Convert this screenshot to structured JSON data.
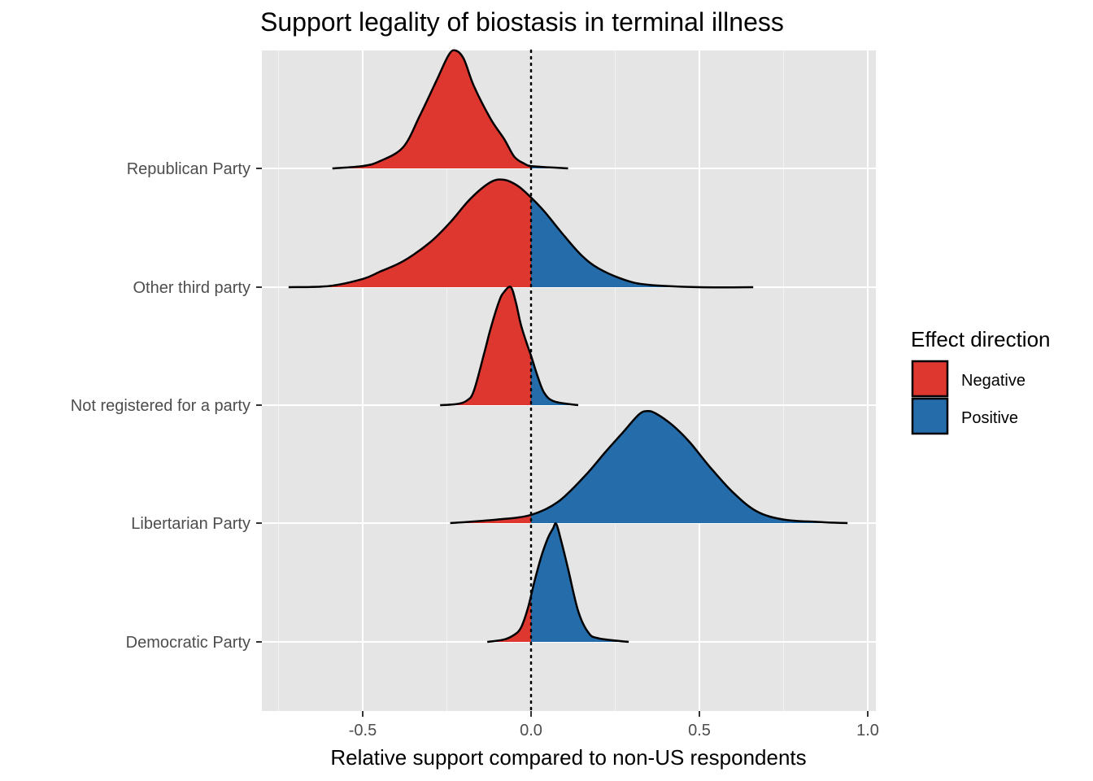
{
  "chart_data": {
    "type": "ridgeline",
    "title": "Support legality of biostasis in terminal illness",
    "xlabel": "Relative support compared to non-US respondents",
    "ylabel": "",
    "xlim": [
      -0.75,
      1.0
    ],
    "x_ticks": [
      -0.5,
      0.0,
      0.5,
      1.0
    ],
    "x_tick_labels": [
      "-0.5",
      "0.0",
      "0.5",
      "1.0"
    ],
    "reference_line_x": 0.0,
    "grid": true,
    "legend": {
      "title": "Effect direction",
      "position": "right",
      "entries": [
        {
          "label": "Negative",
          "color": "#DD3730"
        },
        {
          "label": "Positive",
          "color": "#246CAA"
        }
      ]
    },
    "categories": [
      "Republican Party",
      "Other third party",
      "Not registered for a party",
      "Libertarian Party",
      "Democratic Party"
    ],
    "series": [
      {
        "category": "Republican Party",
        "density": [
          [
            -0.59,
            0
          ],
          [
            -0.5,
            0.02
          ],
          [
            -0.45,
            0.06
          ],
          [
            -0.38,
            0.18
          ],
          [
            -0.33,
            0.45
          ],
          [
            -0.28,
            0.75
          ],
          [
            -0.245,
            0.96
          ],
          [
            -0.225,
            1.0
          ],
          [
            -0.2,
            0.93
          ],
          [
            -0.17,
            0.7
          ],
          [
            -0.12,
            0.42
          ],
          [
            -0.08,
            0.25
          ],
          [
            -0.05,
            0.1
          ],
          [
            -0.02,
            0.04
          ],
          [
            0.0,
            0.02
          ],
          [
            0.05,
            0.01
          ],
          [
            0.11,
            0
          ]
        ]
      },
      {
        "category": "Other third party",
        "density": [
          [
            -0.72,
            0
          ],
          [
            -0.6,
            0.01
          ],
          [
            -0.5,
            0.07
          ],
          [
            -0.45,
            0.13
          ],
          [
            -0.38,
            0.22
          ],
          [
            -0.3,
            0.38
          ],
          [
            -0.24,
            0.55
          ],
          [
            -0.18,
            0.75
          ],
          [
            -0.12,
            0.89
          ],
          [
            -0.08,
            0.91
          ],
          [
            -0.04,
            0.86
          ],
          [
            0.0,
            0.76
          ],
          [
            0.04,
            0.64
          ],
          [
            0.1,
            0.43
          ],
          [
            0.15,
            0.27
          ],
          [
            0.2,
            0.16
          ],
          [
            0.28,
            0.06
          ],
          [
            0.35,
            0.02
          ],
          [
            0.5,
            0.0
          ],
          [
            0.66,
            0
          ]
        ]
      },
      {
        "category": "Not registered for a party",
        "density": [
          [
            -0.27,
            0
          ],
          [
            -0.22,
            0.01
          ],
          [
            -0.19,
            0.04
          ],
          [
            -0.17,
            0.12
          ],
          [
            -0.14,
            0.43
          ],
          [
            -0.12,
            0.65
          ],
          [
            -0.095,
            0.88
          ],
          [
            -0.08,
            0.96
          ],
          [
            -0.06,
            1.0
          ],
          [
            -0.045,
            0.87
          ],
          [
            -0.03,
            0.68
          ],
          [
            -0.01,
            0.5
          ],
          [
            0.0,
            0.42
          ],
          [
            0.02,
            0.24
          ],
          [
            0.04,
            0.1
          ],
          [
            0.07,
            0.03
          ],
          [
            0.14,
            0
          ]
        ]
      },
      {
        "category": "Libertarian Party",
        "density": [
          [
            -0.24,
            0
          ],
          [
            -0.1,
            0.03
          ],
          [
            0.0,
            0.07
          ],
          [
            0.08,
            0.18
          ],
          [
            0.16,
            0.4
          ],
          [
            0.22,
            0.6
          ],
          [
            0.27,
            0.76
          ],
          [
            0.32,
            0.92
          ],
          [
            0.345,
            0.95
          ],
          [
            0.37,
            0.93
          ],
          [
            0.42,
            0.83
          ],
          [
            0.47,
            0.69
          ],
          [
            0.53,
            0.48
          ],
          [
            0.6,
            0.26
          ],
          [
            0.67,
            0.1
          ],
          [
            0.75,
            0.03
          ],
          [
            0.85,
            0.01
          ],
          [
            0.94,
            0
          ]
        ]
      },
      {
        "category": "Democratic Party",
        "density": [
          [
            -0.13,
            0
          ],
          [
            -0.08,
            0.02
          ],
          [
            -0.05,
            0.06
          ],
          [
            -0.03,
            0.12
          ],
          [
            -0.01,
            0.28
          ],
          [
            0.01,
            0.51
          ],
          [
            0.03,
            0.72
          ],
          [
            0.05,
            0.88
          ],
          [
            0.065,
            0.96
          ],
          [
            0.075,
            1.0
          ],
          [
            0.09,
            0.85
          ],
          [
            0.11,
            0.62
          ],
          [
            0.14,
            0.26
          ],
          [
            0.17,
            0.08
          ],
          [
            0.2,
            0.03
          ],
          [
            0.29,
            0
          ]
        ]
      }
    ]
  }
}
